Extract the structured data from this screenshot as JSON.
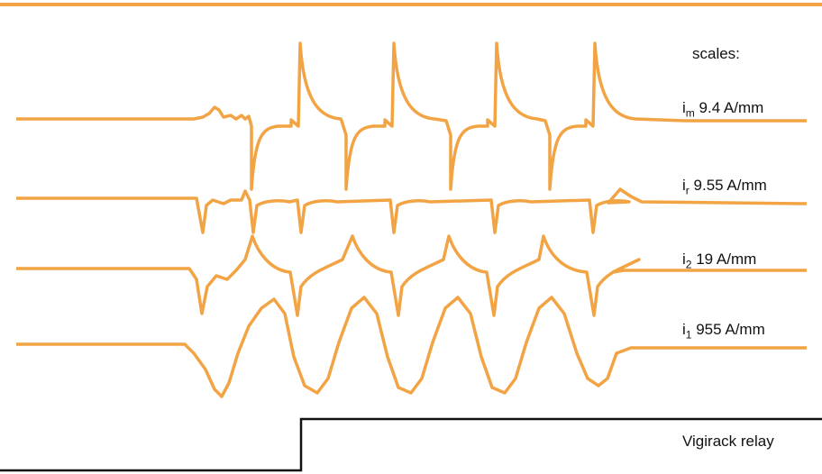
{
  "colors": {
    "trace": "#f2a444",
    "relay": "#111111",
    "background": "#ffffff"
  },
  "labels": {
    "scales": "scales:",
    "im": {
      "symbol": "i",
      "sub": "m",
      "scale": "9.4 A/mm"
    },
    "ir": {
      "symbol": "i",
      "sub": "r",
      "scale": "9.55 A/mm"
    },
    "i2": {
      "symbol": "i",
      "sub": "2",
      "scale": "19 A/mm"
    },
    "i1": {
      "symbol": "i",
      "sub": "1",
      "scale": "955 A/mm"
    },
    "relay": "Vigirack relay"
  },
  "chart_data": {
    "type": "line",
    "title": "",
    "xlabel": "",
    "ylabel": "",
    "grid": false,
    "legend": "right-side labels",
    "series": [
      {
        "name": "iₘ 9.4 A/mm",
        "description_units": "relative waveform",
        "baseline": 0,
        "pulses": 4,
        "peak_relative": 1.0
      },
      {
        "name": "iᵣ 9.55 A/mm",
        "baseline": 0,
        "pulses": 4
      },
      {
        "name": "i₂ 19 A/mm",
        "baseline": 0,
        "pulses": 4
      },
      {
        "name": "i₁ 955 A/mm",
        "baseline": 0,
        "cycles": 4
      },
      {
        "name": "Vigirack relay",
        "states": [
          "off",
          "on"
        ]
      }
    ]
  }
}
